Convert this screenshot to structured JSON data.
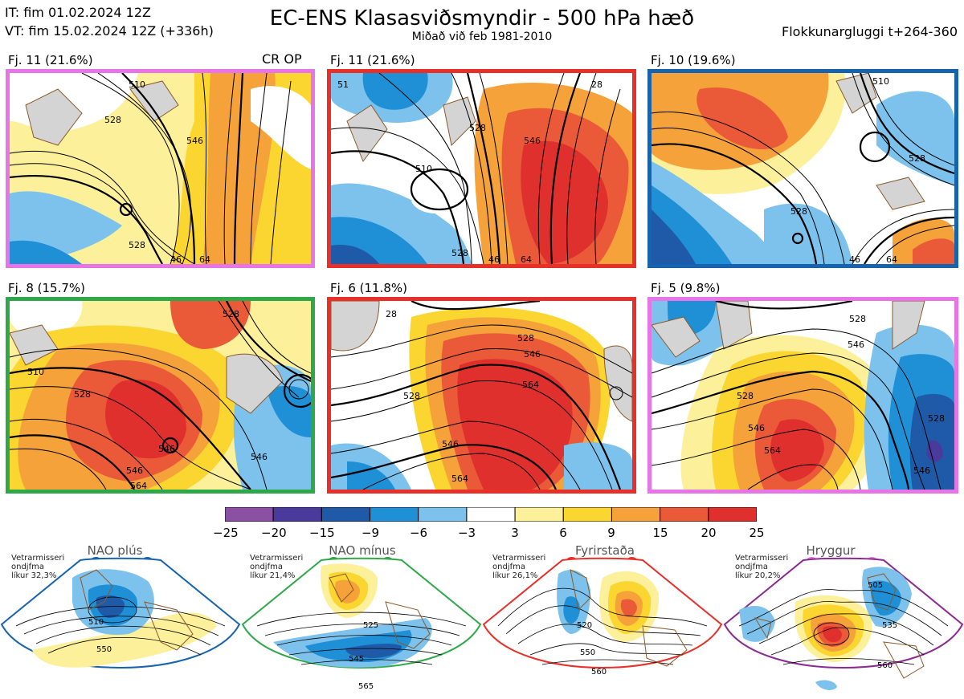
{
  "header": {
    "it_line": "IT: fim 01.02.2024 12Z",
    "vt_line": "VT: fim 15.02.2024 12Z  (+336h)",
    "title": "EC-ENS Klasasviðsmyndir - 500 hPa hæð",
    "subtitle": "Miðað við feb 1981-2010",
    "window": "Flokkunargluggi t+264-360"
  },
  "crop_label": "CR OP",
  "colors": {
    "border_magenta": "#e875e8",
    "border_red": "#e8302a",
    "border_blue": "#1763ad",
    "border_green": "#2fa84a",
    "border_purple": "#8b2a92"
  },
  "panels": [
    {
      "label": "Fj. 11 (21.6%)",
      "border": "#e875e8",
      "regime": "Hryggur",
      "contours": [
        "510",
        "528",
        "546",
        "528",
        "46",
        "64"
      ]
    },
    {
      "label": "Fj. 11 (21.6%)",
      "border": "#e8302a",
      "regime": "Fyrirstaða",
      "contours": [
        "51",
        "528",
        "546",
        "510",
        "528",
        "46",
        "64",
        "28"
      ]
    },
    {
      "label": "Fj. 10 (19.6%)",
      "border": "#1763ad",
      "regime": "NAO plús",
      "contours": [
        "510",
        "528",
        "528",
        "46",
        "64"
      ]
    },
    {
      "label": "Fj. 8 (15.7%)",
      "border": "#2fa84a",
      "regime": "NAO mínus",
      "contours": [
        "510",
        "528",
        "546",
        "528",
        "546",
        "564",
        "546"
      ]
    },
    {
      "label": "Fj. 6 (11.8%)",
      "border": "#e8302a",
      "regime": "Fyrirstaða",
      "contours": [
        "528",
        "546",
        "564",
        "528",
        "546",
        "564",
        "28"
      ]
    },
    {
      "label": "Fj. 5 (9.8%)",
      "border": "#e875e8",
      "regime": "Hryggur",
      "contours": [
        "528",
        "546",
        "528",
        "546",
        "564",
        "546",
        "528"
      ]
    }
  ],
  "colorbar": {
    "ticks": [
      "−25",
      "−20",
      "−15",
      "−9",
      "−6",
      "−3",
      "3",
      "6",
      "9",
      "15",
      "20",
      "25"
    ],
    "colors": [
      "#8b4fa3",
      "#4a3a9c",
      "#1e5aa8",
      "#1f8fd6",
      "#7cc2ec",
      "#ffffff",
      "#fdf09a",
      "#fbd530",
      "#f5a23a",
      "#ea5a38",
      "#e0302e"
    ]
  },
  "regimes": [
    {
      "name": "NAO plús",
      "stat": "Vetrarmisseri\nondjfma\nlíkur 32,3%",
      "color": "#1763ad",
      "contours": [
        "510",
        "550"
      ]
    },
    {
      "name": "NAO mínus",
      "stat": "Vetrarmisseri\nondjfma\nlíkur 21,4%",
      "color": "#2fa84a",
      "contours": [
        "525",
        "545",
        "565"
      ]
    },
    {
      "name": "Fyrirstaða",
      "stat": "Vetrarmisseri\nondjfma\nlíkur 26,1%",
      "color": "#e8302a",
      "contours": [
        "520",
        "550",
        "560"
      ]
    },
    {
      "name": "Hryggur",
      "stat": "Vetrarmisseri\nondjfma\nlíkur 20,2%",
      "color": "#8b2a92",
      "contours": [
        "505",
        "535",
        "560"
      ]
    }
  ]
}
